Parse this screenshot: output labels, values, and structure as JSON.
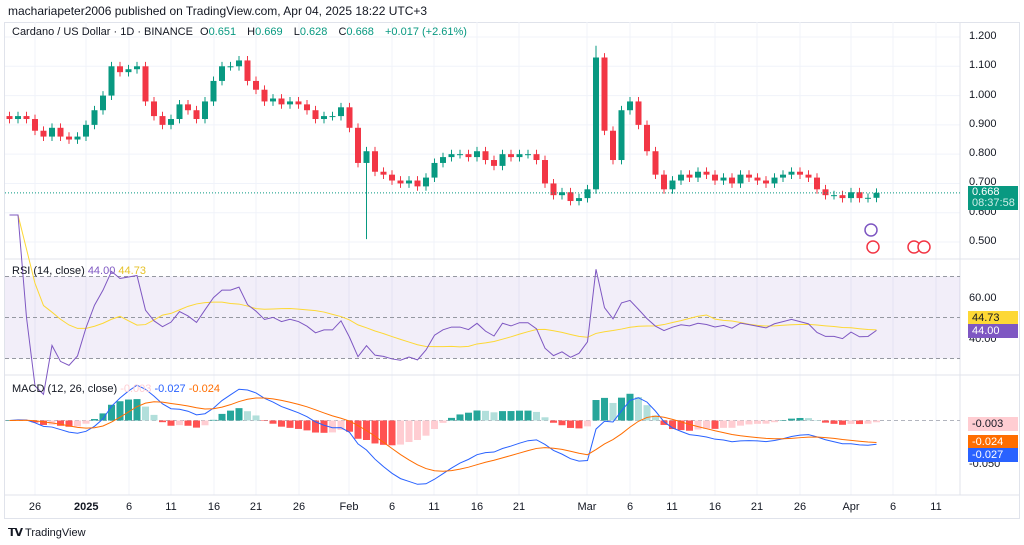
{
  "header": {
    "publisher_line": "machariapeter2006 published on TradingView.com, Apr 04, 2025 18:22 UTC+3"
  },
  "legend": {
    "symbol": "Cardano / US Dollar · 1D · BINANCE",
    "o_label": "O",
    "o": "0.651",
    "h_label": "H",
    "h": "0.669",
    "l_label": "L",
    "l": "0.628",
    "c_label": "C",
    "c": "0.668",
    "change": "+0.017 (+2.61%)"
  },
  "price_axis": {
    "ticks": [
      "1.200",
      "1.100",
      "1.000",
      "0.900",
      "0.800",
      "0.700",
      "0.600",
      "0.500"
    ],
    "last_price": "0.668",
    "countdown": "08:37:58"
  },
  "rsi": {
    "label": "RSI (14, close)",
    "value": "44.00",
    "ma_value": "44.73",
    "ticks": [
      "60.00",
      "40.00"
    ]
  },
  "macd": {
    "label": "MACD (12, 26, close)",
    "hist": "-0.003",
    "macd": "-0.027",
    "signal": "-0.024",
    "ticks": [
      "-0.003",
      "-0.050"
    ]
  },
  "time_axis": [
    "26",
    "2025",
    "6",
    "11",
    "16",
    "21",
    "26",
    "Feb",
    "6",
    "11",
    "16",
    "21",
    "Mar",
    "6",
    "11",
    "16",
    "21",
    "26",
    "Apr",
    "6",
    "11"
  ],
  "footer": {
    "brand": "TradingView"
  },
  "colors": {
    "up": "#089981",
    "down": "#f23645",
    "rsi": "#7e57c2",
    "rsi_ma": "#fdd835",
    "macd": "#2962ff",
    "signal": "#ff6d00"
  },
  "chart_data": {
    "type": "candlestick",
    "start_date": "2024-12-23",
    "closes": [
      0.92,
      0.93,
      0.92,
      0.88,
      0.86,
      0.89,
      0.86,
      0.85,
      0.86,
      0.9,
      0.95,
      1.0,
      1.1,
      1.08,
      1.09,
      1.1,
      0.98,
      0.93,
      0.9,
      0.92,
      0.97,
      0.95,
      0.92,
      0.98,
      1.05,
      1.1,
      1.1,
      1.12,
      1.05,
      1.02,
      0.98,
      0.99,
      0.97,
      0.98,
      0.97,
      0.95,
      0.92,
      0.93,
      0.93,
      0.96,
      0.89,
      0.77,
      0.81,
      0.74,
      0.73,
      0.71,
      0.7,
      0.71,
      0.69,
      0.72,
      0.77,
      0.79,
      0.8,
      0.8,
      0.79,
      0.81,
      0.78,
      0.76,
      0.8,
      0.79,
      0.8,
      0.8,
      0.78,
      0.7,
      0.66,
      0.67,
      0.64,
      0.65,
      0.68,
      1.13,
      0.88,
      0.78,
      0.95,
      0.98,
      0.9,
      0.81,
      0.73,
      0.68,
      0.71,
      0.73,
      0.72,
      0.74,
      0.73,
      0.71,
      0.72,
      0.7,
      0.73,
      0.72,
      0.71,
      0.7,
      0.72,
      0.73,
      0.74,
      0.73,
      0.72,
      0.68,
      0.66,
      0.66,
      0.65,
      0.67,
      0.65,
      0.651,
      0.668
    ],
    "notable_low": {
      "date": "2025-02-03",
      "value": 0.51
    },
    "notable_high": {
      "date": "2025-03-02",
      "value": 1.17
    },
    "ylim": [
      0.45,
      1.22
    ]
  }
}
